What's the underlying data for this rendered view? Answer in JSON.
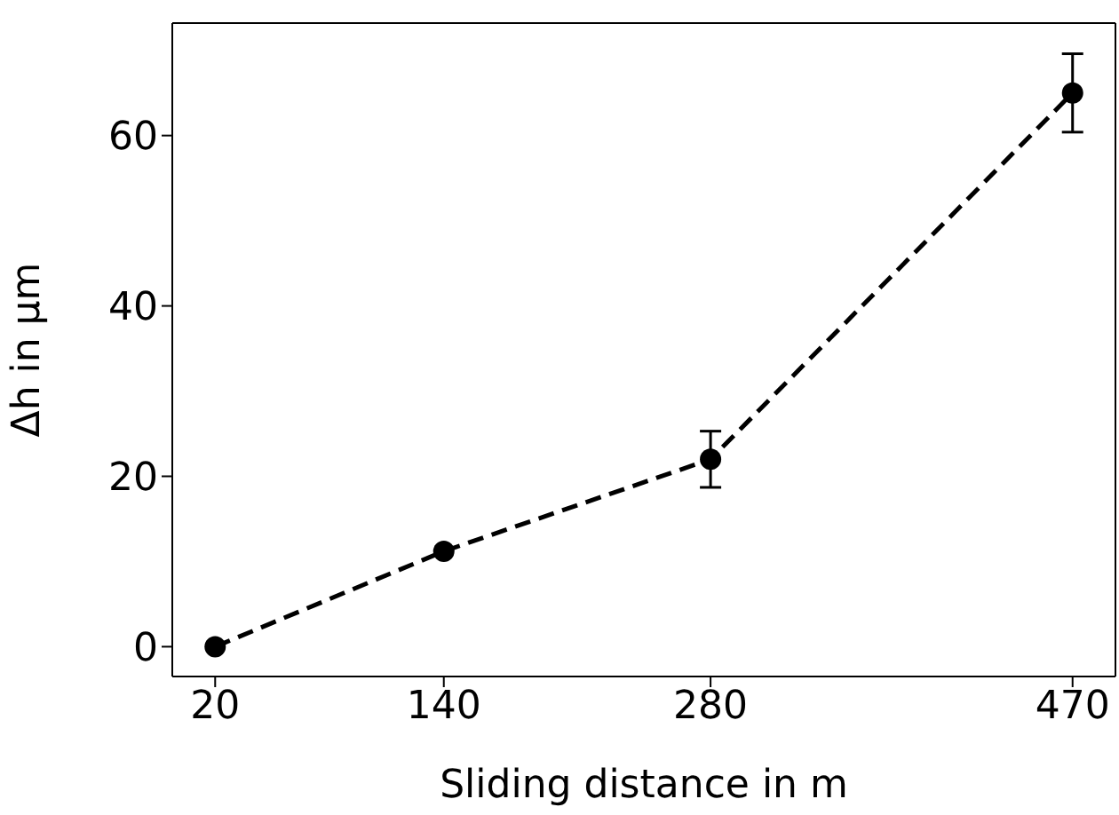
{
  "chart_data": {
    "type": "line",
    "xlabel": "Sliding distance in m",
    "ylabel": "Δh in µm",
    "x": [
      20,
      140,
      280,
      470
    ],
    "series": [
      {
        "color": "#000000",
        "values": [
          0,
          11.2,
          22,
          65
        ],
        "errors": [
          null,
          null,
          3.3,
          4.6
        ]
      }
    ],
    "xlim": [
      -2.5,
      492.5
    ],
    "xticks": [
      20,
      140,
      280,
      470
    ],
    "ylim": [
      -3.5,
      73.2
    ],
    "yticks": [
      0,
      20,
      40,
      60
    ],
    "grid": false,
    "legend": false,
    "marker": "circle",
    "line_style": "dashed"
  }
}
